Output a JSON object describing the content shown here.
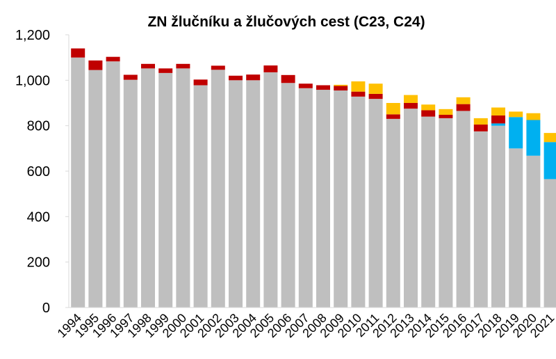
{
  "chart_data": {
    "type": "bar",
    "stacked": true,
    "title": "ZN žlučníku a žlučových cest (C23, C24)",
    "categories": [
      "1994",
      "1995",
      "1996",
      "1997",
      "1998",
      "1999",
      "2000",
      "2001",
      "2002",
      "2003",
      "2004",
      "2005",
      "2006",
      "2007",
      "2008",
      "2009",
      "2010",
      "2011",
      "2012",
      "2013",
      "2014",
      "2015",
      "2016",
      "2017",
      "2018",
      "2019",
      "2020",
      "2021"
    ],
    "series": [
      {
        "color": "#bfbfbf",
        "values": [
          1100,
          1045,
          1083,
          1002,
          1052,
          1032,
          1052,
          978,
          1046,
          1000,
          1000,
          1035,
          988,
          965,
          958,
          955,
          928,
          918,
          830,
          875,
          840,
          833,
          865,
          775,
          800,
          700,
          668,
          565
        ]
      },
      {
        "color": "#00b0f0",
        "values": [
          0,
          0,
          0,
          0,
          0,
          0,
          0,
          0,
          0,
          0,
          0,
          0,
          0,
          0,
          0,
          0,
          0,
          0,
          0,
          0,
          0,
          0,
          0,
          0,
          10,
          138,
          157,
          163
        ]
      },
      {
        "color": "#c00000",
        "values": [
          40,
          42,
          20,
          22,
          20,
          20,
          20,
          25,
          18,
          20,
          25,
          30,
          35,
          20,
          20,
          20,
          22,
          22,
          20,
          25,
          28,
          15,
          30,
          30,
          35,
          0,
          0,
          0
        ]
      },
      {
        "color": "#ffc000",
        "values": [
          0,
          0,
          0,
          0,
          0,
          0,
          0,
          0,
          0,
          0,
          0,
          0,
          0,
          0,
          0,
          5,
          45,
          45,
          50,
          35,
          25,
          25,
          30,
          28,
          35,
          24,
          30,
          40
        ]
      }
    ],
    "ylim": [
      0,
      1200
    ],
    "yticks": [
      0,
      200,
      400,
      600,
      800,
      {
        "value": 1000,
        "label": "1,000"
      },
      {
        "value": 1200,
        "label": "1,200"
      }
    ],
    "grid": false
  }
}
